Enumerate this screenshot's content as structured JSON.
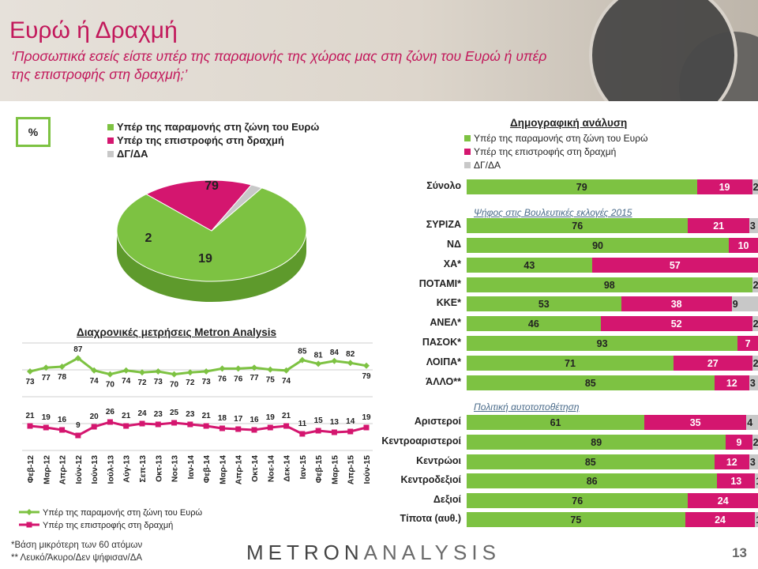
{
  "header": {
    "title": "Ευρώ ή Δραχμή",
    "subtitle": "‘Προσωπικά εσείς είστε υπέρ της παραμονής της χώρας μας στη ζώνη του Ευρώ ή υπέρ της επιστροφής στη δραχμή;’"
  },
  "unit_label": "%",
  "colors": {
    "stay": "#7dc242",
    "return": "#d4166f",
    "dk": "#c8c8c8",
    "accent": "#c2185b"
  },
  "chart_data": [
    {
      "type": "pie",
      "labels": [
        "Υπέρ της παραμονής στη ζώνη του Ευρώ",
        "Υπέρ της επιστροφής στη δραχμή",
        "ΔΓ/ΔΑ"
      ],
      "values": [
        79,
        19,
        2
      ]
    },
    {
      "type": "line",
      "title": "Διαχρονικές μετρήσεις Metron Analysis",
      "categories": [
        "Φεβ-12",
        "Μαρ-12",
        "Απρ-12",
        "Ιούν-12",
        "Ιούν-13",
        "Ιούλ-13",
        "Αύγ-13",
        "Σεπ-13",
        "Οκτ-13",
        "Νοε-13",
        "Ιαν-14",
        "Φεβ-14",
        "Μαρ-14",
        "Απρ-14",
        "Οκτ-14",
        "Νοε-14",
        "Δεκ-14",
        "Ιαν-15",
        "Φεβ-15",
        "Μαρ-15",
        "Απρ-15",
        "Ιούν-15"
      ],
      "series": [
        {
          "name": "Υπέρ της παραμονής στη ζώνη του Ευρώ",
          "values": [
            73,
            77,
            78,
            87,
            74,
            70,
            74,
            72,
            73,
            70,
            72,
            73,
            76,
            76,
            77,
            75,
            74,
            85,
            81,
            84,
            82,
            79
          ]
        },
        {
          "name": "Υπέρ της επιστροφής στη δραχμή",
          "values": [
            21,
            19,
            16,
            9,
            20,
            26,
            21,
            24,
            23,
            25,
            23,
            21,
            18,
            17,
            16,
            19,
            21,
            11,
            15,
            13,
            14,
            19
          ]
        }
      ]
    },
    {
      "type": "bar",
      "title": "Δημογραφική ανάλυση",
      "stacked": true,
      "series_names": [
        "Υπέρ της παραμονής στη ζώνη του Ευρώ",
        "Υπέρ της επιστροφής στη δραχμή",
        "ΔΓ/ΔΑ"
      ],
      "groups": [
        {
          "heading": "",
          "rows": [
            {
              "label": "Σύνολο",
              "values": [
                79,
                19,
                2
              ]
            }
          ]
        },
        {
          "heading": "Ψήφος στις Βουλευτικές εκλογές 2015",
          "rows": [
            {
              "label": "ΣΥΡΙΖΑ",
              "values": [
                76,
                21,
                3
              ]
            },
            {
              "label": "ΝΔ",
              "values": [
                90,
                10,
                0
              ]
            },
            {
              "label": "ΧΑ*",
              "values": [
                43,
                57,
                0
              ]
            },
            {
              "label": "ΠΟΤΑΜΙ*",
              "values": [
                98,
                0,
                2
              ]
            },
            {
              "label": "ΚΚΕ*",
              "values": [
                53,
                38,
                9
              ]
            },
            {
              "label": "ΑΝΕΛ*",
              "values": [
                46,
                52,
                2
              ]
            },
            {
              "label": "ΠΑΣΟΚ*",
              "values": [
                93,
                7,
                0
              ]
            },
            {
              "label": "ΛΟΙΠΑ*",
              "values": [
                71,
                27,
                2
              ]
            },
            {
              "label": "ΆΛΛΟ**",
              "values": [
                85,
                12,
                3
              ]
            }
          ]
        },
        {
          "heading": "Πολιτική αυτοτοποθέτηση",
          "rows": [
            {
              "label": "Αριστεροί",
              "values": [
                61,
                35,
                4
              ]
            },
            {
              "label": "Κεντροαριστεροί",
              "values": [
                89,
                9,
                2
              ]
            },
            {
              "label": "Κεντρώοι",
              "values": [
                85,
                12,
                3
              ]
            },
            {
              "label": "Κεντροδεξιοί",
              "values": [
                86,
                13,
                1
              ]
            },
            {
              "label": "Δεξιοί",
              "values": [
                76,
                24,
                0
              ]
            },
            {
              "label": "Τίποτα (αυθ.)",
              "values": [
                75,
                24,
                1
              ]
            }
          ]
        }
      ]
    }
  ],
  "footnotes": [
    "*Βάση μικρότερη των 60 ατόμων",
    "** Λευκό/Άκυρο/Δεν ψήφισαν/ΔΑ"
  ],
  "logo": {
    "part1": "METRON",
    "part2": "ANALYSIS"
  },
  "page_number": "13"
}
